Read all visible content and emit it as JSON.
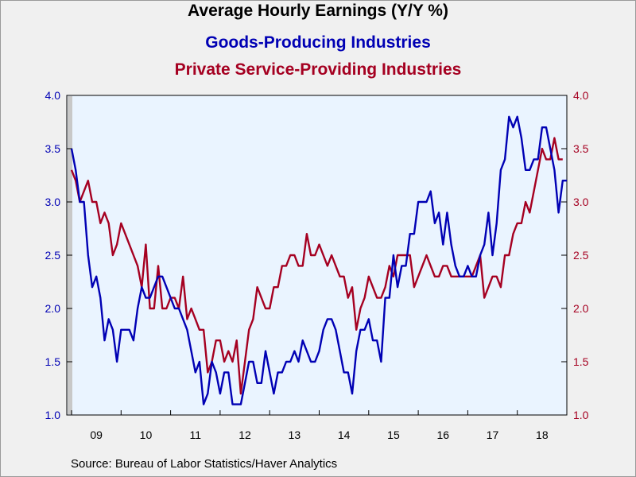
{
  "title": "Average Hourly Earnings (Y/Y %)",
  "chart_data": {
    "type": "line",
    "title": "Average Hourly Earnings (Y/Y %)",
    "xlabel": "",
    "ylabel_left": "",
    "ylabel_right": "",
    "x_start": "2009-01",
    "x_end": "2018-12",
    "x_tick_labels": [
      "09",
      "10",
      "11",
      "12",
      "13",
      "14",
      "15",
      "16",
      "17",
      "18"
    ],
    "ylim": [
      1.0,
      4.0
    ],
    "y_ticks_left": [
      "1.0",
      "1.5",
      "2.0",
      "2.5",
      "3.0",
      "3.5",
      "4.0"
    ],
    "y_ticks_right": [
      "1.0",
      "1.5",
      "2.0",
      "2.5",
      "3.0",
      "3.5",
      "4.0"
    ],
    "grid": false,
    "legend": "top-center",
    "series": [
      {
        "name": "Goods-Producing Industries",
        "color": "#0000b4",
        "axis": "left",
        "values": [
          3.5,
          3.3,
          3.0,
          3.0,
          2.5,
          2.2,
          2.3,
          2.1,
          1.7,
          1.9,
          1.8,
          1.5,
          1.8,
          1.8,
          1.8,
          1.7,
          2.0,
          2.2,
          2.1,
          2.1,
          2.2,
          2.3,
          2.3,
          2.2,
          2.1,
          2.0,
          2.0,
          1.9,
          1.8,
          1.6,
          1.4,
          1.5,
          1.1,
          1.2,
          1.5,
          1.4,
          1.2,
          1.4,
          1.4,
          1.1,
          1.1,
          1.1,
          1.3,
          1.5,
          1.5,
          1.3,
          1.3,
          1.6,
          1.4,
          1.2,
          1.4,
          1.4,
          1.5,
          1.5,
          1.6,
          1.5,
          1.7,
          1.6,
          1.5,
          1.5,
          1.6,
          1.8,
          1.9,
          1.9,
          1.8,
          1.6,
          1.4,
          1.4,
          1.2,
          1.6,
          1.8,
          1.8,
          1.9,
          1.7,
          1.7,
          1.5,
          2.1,
          2.1,
          2.5,
          2.2,
          2.4,
          2.4,
          2.7,
          2.7,
          3.0,
          3.0,
          3.0,
          3.1,
          2.8,
          2.9,
          2.6,
          2.9,
          2.6,
          2.4,
          2.3,
          2.3,
          2.4,
          2.3,
          2.3,
          2.5,
          2.6,
          2.9,
          2.5,
          2.8,
          3.3,
          3.4,
          3.8,
          3.7,
          3.8,
          3.6,
          3.3,
          3.3,
          3.4,
          3.4,
          3.7,
          3.7,
          3.5,
          3.3,
          2.9,
          3.2,
          3.2
        ]
      },
      {
        "name": "Private Service-Providing Industries",
        "color": "#a50021",
        "axis": "right",
        "values": [
          3.3,
          3.2,
          3.0,
          3.1,
          3.2,
          3.0,
          3.0,
          2.8,
          2.9,
          2.8,
          2.5,
          2.6,
          2.8,
          2.7,
          2.6,
          2.5,
          2.4,
          2.2,
          2.6,
          2.0,
          2.0,
          2.4,
          2.0,
          2.0,
          2.1,
          2.1,
          2.0,
          2.3,
          1.9,
          2.0,
          1.9,
          1.8,
          1.8,
          1.4,
          1.5,
          1.7,
          1.7,
          1.5,
          1.6,
          1.5,
          1.7,
          1.2,
          1.5,
          1.8,
          1.9,
          2.2,
          2.1,
          2.0,
          2.0,
          2.2,
          2.2,
          2.4,
          2.4,
          2.5,
          2.5,
          2.4,
          2.4,
          2.7,
          2.5,
          2.5,
          2.6,
          2.5,
          2.4,
          2.5,
          2.4,
          2.3,
          2.3,
          2.1,
          2.2,
          1.8,
          2.0,
          2.1,
          2.3,
          2.2,
          2.1,
          2.1,
          2.2,
          2.4,
          2.3,
          2.5,
          2.5,
          2.5,
          2.5,
          2.2,
          2.3,
          2.4,
          2.5,
          2.4,
          2.3,
          2.3,
          2.4,
          2.4,
          2.3,
          2.3,
          2.3,
          2.3,
          2.3,
          2.3,
          2.4,
          2.5,
          2.1,
          2.2,
          2.3,
          2.3,
          2.2,
          2.5,
          2.5,
          2.7,
          2.8,
          2.8,
          3.0,
          2.9,
          3.1,
          3.3,
          3.5,
          3.4,
          3.4,
          3.6,
          3.4,
          3.4
        ]
      }
    ]
  },
  "source": "Source:  Bureau of Labor Statistics/Haver Analytics"
}
